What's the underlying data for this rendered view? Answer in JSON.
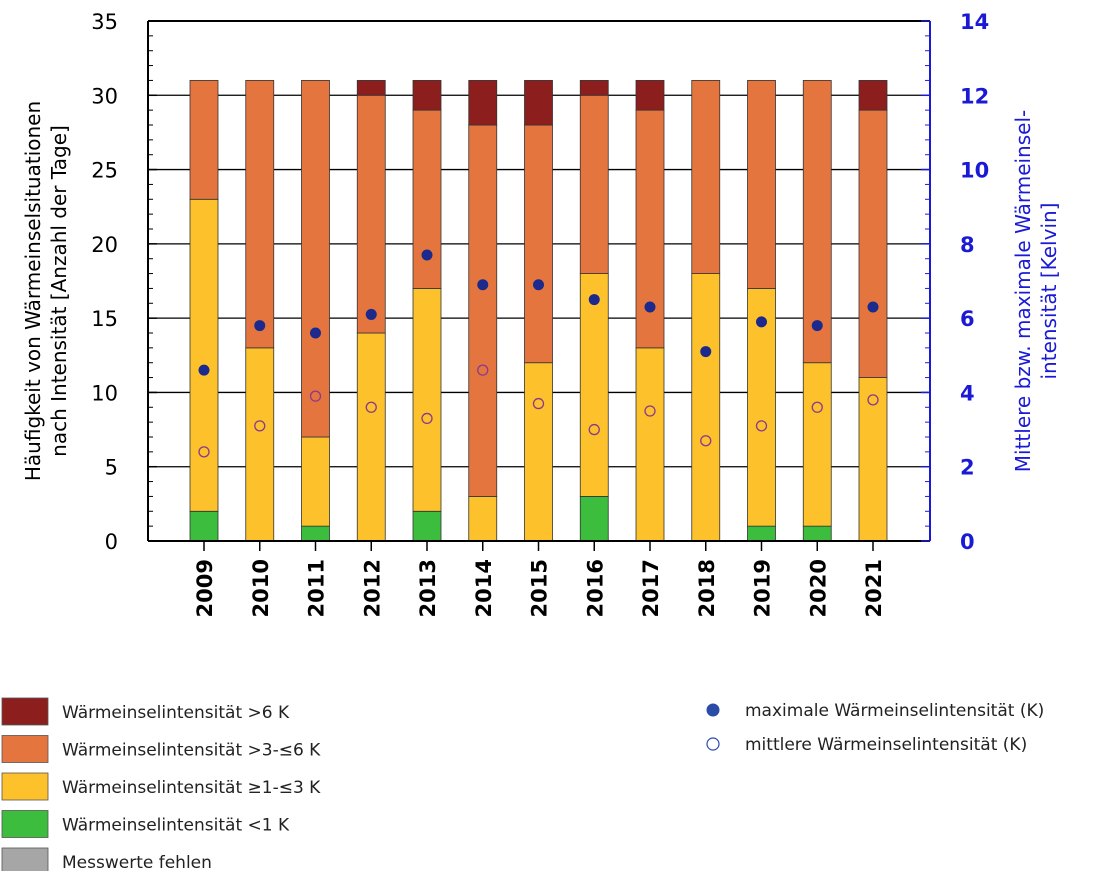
{
  "chart_data": {
    "type": "bar",
    "stacked": true,
    "title": "",
    "categories": [
      "2009",
      "2010",
      "2011",
      "2012",
      "2013",
      "2014",
      "2015",
      "2016",
      "2017",
      "2018",
      "2019",
      "2020",
      "2021"
    ],
    "series": [
      {
        "name": "Wärmeinselintensität <1 K",
        "color": "#3dbd3d",
        "values": [
          2,
          0,
          1,
          0,
          2,
          0,
          0,
          3,
          0,
          0,
          1,
          1,
          0
        ]
      },
      {
        "name": "Wärmeinselintensität ≥1-≤3 K",
        "color": "#fdc12c",
        "values": [
          21,
          13,
          6,
          14,
          15,
          3,
          12,
          15,
          13,
          18,
          16,
          11,
          11
        ]
      },
      {
        "name": "Wärmeinselintensität >3-≤6 K",
        "color": "#e5753f",
        "values": [
          8,
          18,
          24,
          16,
          12,
          25,
          16,
          12,
          16,
          13,
          14,
          19,
          18
        ]
      },
      {
        "name": "Wärmeinselintensität >6 K",
        "color": "#8d1e1e",
        "values": [
          0,
          0,
          0,
          1,
          2,
          3,
          3,
          1,
          2,
          0,
          0,
          0,
          2
        ]
      },
      {
        "name": "Messwerte fehlen",
        "color": "#a6a6a6",
        "values": [
          0,
          0,
          0,
          0,
          0,
          0,
          0,
          0,
          0,
          0,
          0,
          0,
          0
        ]
      }
    ],
    "points": [
      {
        "name": "maximale Wärmeinselintensität (K)",
        "marker": "filled",
        "color": "#1b2a8c",
        "values": [
          4.6,
          5.8,
          5.6,
          6.1,
          7.7,
          6.9,
          6.9,
          6.5,
          6.3,
          5.1,
          5.9,
          5.8,
          6.3
        ]
      },
      {
        "name": "mittlere Wärmeinselintensität (K)",
        "marker": "open",
        "color": "#8a3a8a",
        "values": [
          2.4,
          3.1,
          3.9,
          3.6,
          3.3,
          4.6,
          3.7,
          3.0,
          3.5,
          2.7,
          3.1,
          3.6,
          3.8
        ]
      }
    ],
    "y_left": {
      "label_lines": [
        "Häufigkeit von Wärmeinselsituationen",
        "nach Intensität [Anzahl der Tage]"
      ],
      "ylim": [
        0,
        35
      ],
      "ticks": [
        "0",
        "5",
        "10",
        "15",
        "20",
        "25",
        "30",
        "35"
      ]
    },
    "y_right": {
      "label_lines": [
        "Mittlere bzw. maximale Wärmeinsel-",
        "intensität [Kelvin]"
      ],
      "ylim": [
        0,
        14
      ],
      "ticks": [
        "0",
        "2",
        "4",
        "6",
        "8",
        "10",
        "12",
        "14"
      ],
      "color": "#1a1ad6"
    },
    "grid": true,
    "legend_position": "bottom"
  },
  "legend": {
    "bars": [
      {
        "label": "Wärmeinselintensität >6 K",
        "color": "#8d1e1e"
      },
      {
        "label": "Wärmeinselintensität >3-≤6 K",
        "color": "#e5753f"
      },
      {
        "label": "Wärmeinselintensität ≥1-≤3 K",
        "color": "#fdc12c"
      },
      {
        "label": "Wärmeinselintensität <1 K",
        "color": "#3dbd3d"
      },
      {
        "label": "Messwerte fehlen",
        "color": "#a6a6a6"
      }
    ],
    "markers": [
      {
        "label": "maximale Wärmeinselintensität (K)",
        "marker": "filled",
        "color": "#2a4ba8"
      },
      {
        "label": "mittlere Wärmeinselintensität (K)",
        "marker": "open",
        "color": "#2a4ba8"
      }
    ]
  }
}
